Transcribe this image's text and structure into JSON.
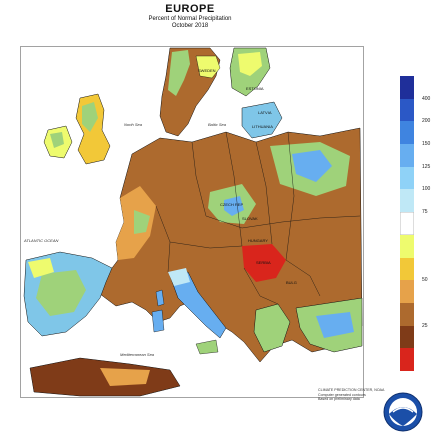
{
  "titles": {
    "region": "EUROPE",
    "metric": "Percent of Normal Precipitation",
    "period": "October 2018"
  },
  "legend": {
    "labels": [
      "400",
      "200",
      "150",
      "125",
      "100",
      "75",
      "50",
      "25"
    ],
    "colors": [
      "#1f2f9a",
      "#2b58c6",
      "#3f84e0",
      "#67aef0",
      "#8fd2f7",
      "#bfe8f6",
      "#ffffff",
      "#eefb6e",
      "#f2c838",
      "#e6a24a",
      "#ad6a2e",
      "#7f3b18",
      "#d9251c"
    ]
  },
  "map_labels": {
    "sweden": "SWEDEN",
    "estonia": "ESTONIA",
    "latvia": "LATVIA",
    "lithuania": "LITHUANIA",
    "czech": "CZECH REP",
    "slovak": "SLOVAK",
    "hungary": "HUNGARY",
    "serbia": "SERBIA",
    "bulgaria": "BULG",
    "north_sea": "North Sea",
    "baltic_sea": "Baltic Sea",
    "atlantic": "ATLANTIC OCEAN",
    "mediterranean": "Mediterranean Sea"
  },
  "credit": {
    "center": "CLIMATE PREDICTION CENTER, NOAA",
    "line2": "Computer generated contours",
    "line3": "Based on preliminary data"
  },
  "colors": {
    "water": "#ffffff",
    "border": "#111111"
  }
}
